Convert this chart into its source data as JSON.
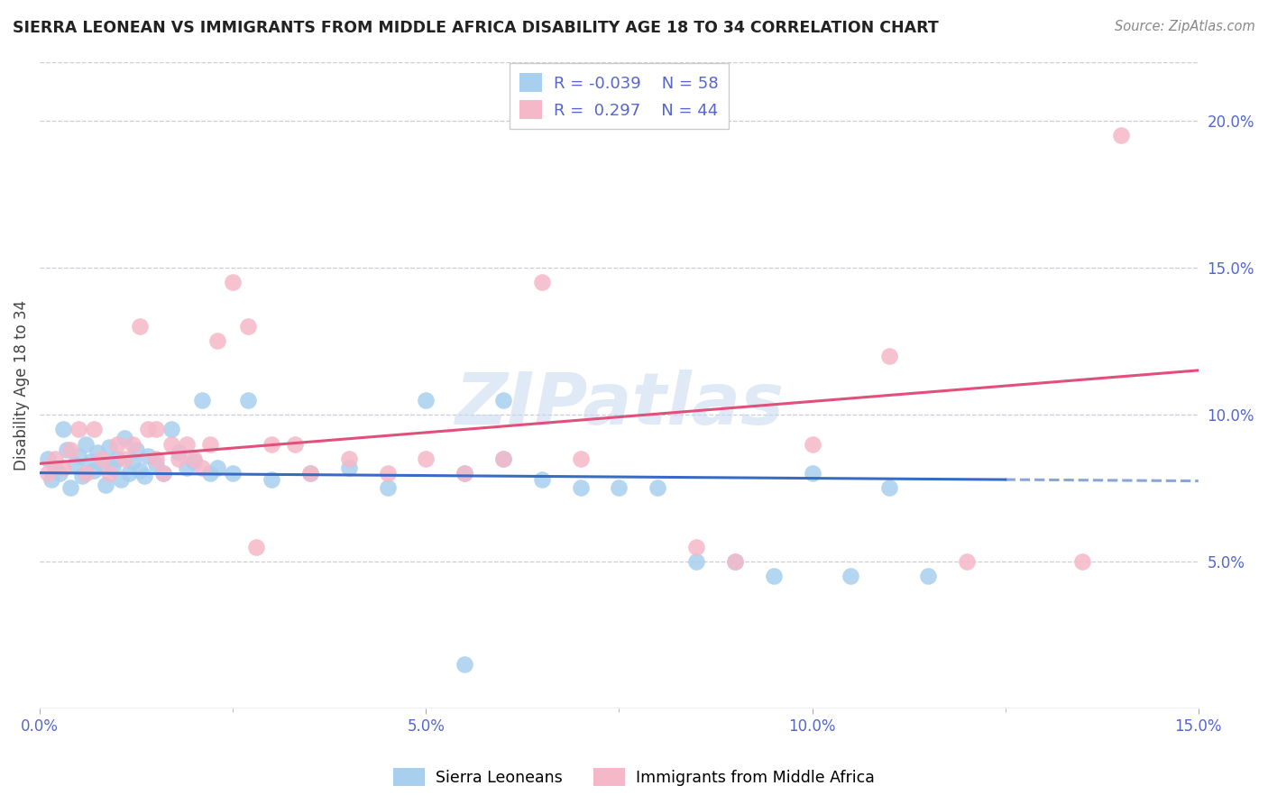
{
  "title": "SIERRA LEONEAN VS IMMIGRANTS FROM MIDDLE AFRICA DISABILITY AGE 18 TO 34 CORRELATION CHART",
  "source": "Source: ZipAtlas.com",
  "ylabel": "Disability Age 18 to 34",
  "xlim": [
    0.0,
    15.0
  ],
  "ylim": [
    0.0,
    22.0
  ],
  "r_blue": -0.039,
  "n_blue": 58,
  "r_pink": 0.297,
  "n_pink": 44,
  "blue_color": "#A8CFEE",
  "pink_color": "#F5B8C8",
  "blue_line_color": "#3A6BC4",
  "pink_line_color": "#E0507A",
  "watermark": "ZIPatlas",
  "legend_label_blue": "Sierra Leoneans",
  "legend_label_pink": "Immigrants from Middle Africa",
  "tick_color": "#5566CC",
  "blue_x": [
    0.1,
    0.15,
    0.2,
    0.25,
    0.3,
    0.35,
    0.4,
    0.45,
    0.5,
    0.55,
    0.6,
    0.65,
    0.7,
    0.75,
    0.8,
    0.85,
    0.9,
    0.95,
    1.0,
    1.05,
    1.1,
    1.15,
    1.2,
    1.25,
    1.3,
    1.35,
    1.4,
    1.5,
    1.6,
    1.7,
    1.8,
    1.9,
    2.0,
    2.1,
    2.2,
    2.3,
    2.5,
    2.7,
    3.0,
    3.5,
    4.0,
    4.5,
    5.0,
    5.5,
    6.0,
    6.0,
    6.5,
    7.0,
    7.5,
    8.0,
    8.5,
    9.0,
    9.5,
    10.0,
    10.5,
    11.0,
    11.5,
    5.5
  ],
  "blue_y": [
    8.5,
    7.8,
    8.2,
    8.0,
    9.5,
    8.8,
    7.5,
    8.3,
    8.6,
    7.9,
    9.0,
    8.4,
    8.1,
    8.7,
    8.3,
    7.6,
    8.9,
    8.2,
    8.5,
    7.8,
    9.2,
    8.0,
    8.4,
    8.8,
    8.1,
    7.9,
    8.6,
    8.3,
    8.0,
    9.5,
    8.7,
    8.2,
    8.4,
    10.5,
    8.0,
    8.2,
    8.0,
    10.5,
    7.8,
    8.0,
    8.2,
    7.5,
    10.5,
    8.0,
    10.5,
    8.5,
    7.8,
    7.5,
    7.5,
    7.5,
    5.0,
    5.0,
    4.5,
    8.0,
    4.5,
    7.5,
    4.5,
    1.5
  ],
  "pink_x": [
    0.1,
    0.2,
    0.3,
    0.4,
    0.5,
    0.6,
    0.7,
    0.8,
    0.9,
    1.0,
    1.1,
    1.2,
    1.3,
    1.4,
    1.5,
    1.6,
    1.7,
    1.8,
    1.9,
    2.0,
    2.1,
    2.2,
    2.3,
    2.5,
    2.7,
    3.0,
    3.3,
    3.5,
    4.0,
    4.5,
    5.0,
    5.5,
    6.0,
    6.5,
    7.0,
    8.5,
    9.0,
    10.0,
    11.0,
    12.0,
    13.5,
    14.0,
    2.8,
    1.5
  ],
  "pink_y": [
    8.0,
    8.5,
    8.2,
    8.8,
    9.5,
    8.0,
    9.5,
    8.5,
    8.0,
    9.0,
    8.5,
    9.0,
    13.0,
    9.5,
    9.5,
    8.0,
    9.0,
    8.5,
    9.0,
    8.5,
    8.2,
    9.0,
    12.5,
    14.5,
    13.0,
    9.0,
    9.0,
    8.0,
    8.5,
    8.0,
    8.5,
    8.0,
    8.5,
    14.5,
    8.5,
    5.5,
    5.0,
    9.0,
    12.0,
    5.0,
    5.0,
    19.5,
    5.5,
    8.5
  ],
  "blue_solid_end": 12.5,
  "grid_color": "#CCCCDD",
  "grid_style": "--"
}
